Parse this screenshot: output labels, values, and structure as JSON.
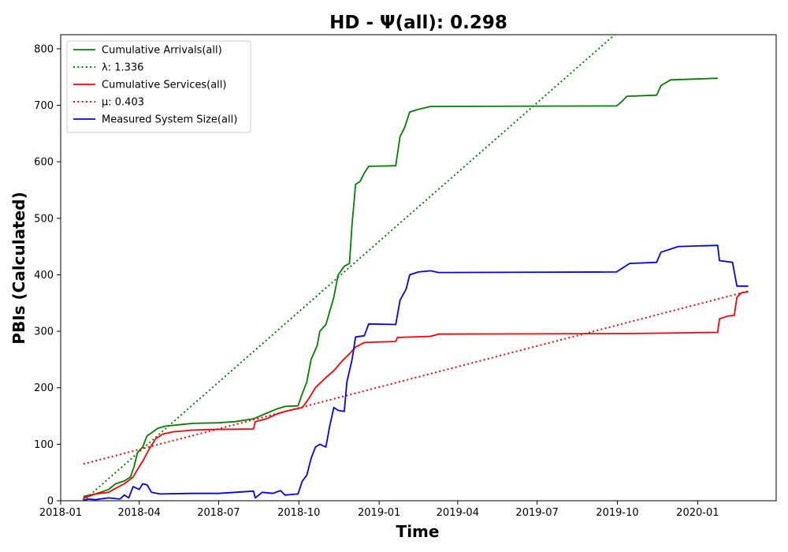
{
  "chart_data": {
    "type": "line",
    "title": "HD -  Ψ(all): 0.298",
    "xlabel": "Time",
    "ylabel": "PBIs (Calculated)",
    "xlim": [
      "2018-01-01",
      "2020-03-31"
    ],
    "ylim": [
      0,
      825
    ],
    "x_ticks": [
      "2018-01",
      "2018-04",
      "2018-07",
      "2018-10",
      "2019-01",
      "2019-04",
      "2019-07",
      "2019-10",
      "2020-01"
    ],
    "y_ticks": [
      0,
      100,
      200,
      300,
      400,
      500,
      600,
      700,
      800
    ],
    "grid": false,
    "legend_position": "upper-left",
    "series": [
      {
        "name": "Cumulative Arrivals(all)",
        "color": "#008000",
        "style": "solid",
        "points": [
          [
            "2018-01-27",
            0
          ],
          [
            "2018-01-28",
            8
          ],
          [
            "2018-02-10",
            12
          ],
          [
            "2018-02-25",
            20
          ],
          [
            "2018-03-05",
            30
          ],
          [
            "2018-03-15",
            35
          ],
          [
            "2018-03-22",
            42
          ],
          [
            "2018-03-26",
            60
          ],
          [
            "2018-03-30",
            85
          ],
          [
            "2018-04-05",
            95
          ],
          [
            "2018-04-10",
            115
          ],
          [
            "2018-04-15",
            120
          ],
          [
            "2018-04-22",
            128
          ],
          [
            "2018-05-01",
            132
          ],
          [
            "2018-05-20",
            135
          ],
          [
            "2018-06-01",
            137
          ],
          [
            "2018-07-01",
            138
          ],
          [
            "2018-07-20",
            140
          ],
          [
            "2018-08-10",
            145
          ],
          [
            "2018-08-25",
            155
          ],
          [
            "2018-09-05",
            162
          ],
          [
            "2018-09-15",
            167
          ],
          [
            "2018-09-30",
            168
          ],
          [
            "2018-10-05",
            190
          ],
          [
            "2018-10-10",
            210
          ],
          [
            "2018-10-15",
            250
          ],
          [
            "2018-10-22",
            275
          ],
          [
            "2018-10-25",
            300
          ],
          [
            "2018-11-01",
            312
          ],
          [
            "2018-11-10",
            360
          ],
          [
            "2018-11-15",
            400
          ],
          [
            "2018-11-22",
            415
          ],
          [
            "2018-11-28",
            420
          ],
          [
            "2018-12-01",
            490
          ],
          [
            "2018-12-05",
            560
          ],
          [
            "2018-12-10",
            565
          ],
          [
            "2018-12-15",
            580
          ],
          [
            "2018-12-20",
            592
          ],
          [
            "2019-01-20",
            593
          ],
          [
            "2019-01-25",
            645
          ],
          [
            "2019-01-30",
            660
          ],
          [
            "2019-02-05",
            688
          ],
          [
            "2019-02-15",
            693
          ],
          [
            "2019-03-01",
            698
          ],
          [
            "2019-09-30",
            699
          ],
          [
            "2019-10-05",
            705
          ],
          [
            "2019-10-12",
            716
          ],
          [
            "2019-11-15",
            718
          ],
          [
            "2019-11-20",
            735
          ],
          [
            "2019-12-01",
            745
          ],
          [
            "2020-01-24",
            748
          ]
        ]
      },
      {
        "name": "λ: 1.336",
        "color": "#008000",
        "style": "dotted",
        "points": [
          [
            "2018-01-27",
            0
          ],
          [
            "2019-09-28",
            825
          ]
        ]
      },
      {
        "name": "Cumulative Services(all)",
        "color": "#ff0000",
        "style": "solid",
        "points": [
          [
            "2018-01-27",
            0
          ],
          [
            "2018-01-28",
            5
          ],
          [
            "2018-02-10",
            12
          ],
          [
            "2018-02-25",
            15
          ],
          [
            "2018-03-05",
            22
          ],
          [
            "2018-03-15",
            30
          ],
          [
            "2018-03-25",
            42
          ],
          [
            "2018-03-30",
            55
          ],
          [
            "2018-04-05",
            70
          ],
          [
            "2018-04-12",
            90
          ],
          [
            "2018-04-20",
            110
          ],
          [
            "2018-04-28",
            118
          ],
          [
            "2018-05-10",
            122
          ],
          [
            "2018-06-01",
            125
          ],
          [
            "2018-06-20",
            126
          ],
          [
            "2018-08-10",
            127
          ],
          [
            "2018-08-12",
            140
          ],
          [
            "2018-08-25",
            145
          ],
          [
            "2018-09-05",
            153
          ],
          [
            "2018-09-15",
            158
          ],
          [
            "2018-10-05",
            165
          ],
          [
            "2018-10-12",
            180
          ],
          [
            "2018-10-20",
            200
          ],
          [
            "2018-11-01",
            218
          ],
          [
            "2018-11-10",
            230
          ],
          [
            "2018-11-20",
            248
          ],
          [
            "2018-11-28",
            260
          ],
          [
            "2018-12-05",
            272
          ],
          [
            "2018-12-15",
            280
          ],
          [
            "2019-01-20",
            282
          ],
          [
            "2019-01-22",
            289
          ],
          [
            "2019-03-01",
            291
          ],
          [
            "2019-03-10",
            295
          ],
          [
            "2019-10-15",
            296
          ],
          [
            "2020-01-24",
            298
          ],
          [
            "2020-01-26",
            322
          ],
          [
            "2020-02-05",
            327
          ],
          [
            "2020-02-12",
            328
          ],
          [
            "2020-02-15",
            360
          ],
          [
            "2020-02-20",
            368
          ],
          [
            "2020-02-28",
            370
          ]
        ]
      },
      {
        "name": "μ: 0.403",
        "color": "#ff0000",
        "style": "dotted",
        "points": [
          [
            "2018-01-27",
            65
          ],
          [
            "2020-02-28",
            371
          ]
        ]
      },
      {
        "name": "Measured System Size(all)",
        "color": "#0000ff",
        "style": "solid",
        "points": [
          [
            "2018-01-27",
            0
          ],
          [
            "2018-02-01",
            3
          ],
          [
            "2018-02-10",
            2
          ],
          [
            "2018-02-25",
            5
          ],
          [
            "2018-03-10",
            3
          ],
          [
            "2018-03-15",
            10
          ],
          [
            "2018-03-20",
            5
          ],
          [
            "2018-03-25",
            25
          ],
          [
            "2018-04-01",
            20
          ],
          [
            "2018-04-05",
            30
          ],
          [
            "2018-04-10",
            28
          ],
          [
            "2018-04-15",
            15
          ],
          [
            "2018-04-25",
            12
          ],
          [
            "2018-06-01",
            13
          ],
          [
            "2018-07-01",
            13
          ],
          [
            "2018-08-10",
            17
          ],
          [
            "2018-08-12",
            5
          ],
          [
            "2018-08-20",
            15
          ],
          [
            "2018-09-01",
            13
          ],
          [
            "2018-09-10",
            18
          ],
          [
            "2018-09-15",
            10
          ],
          [
            "2018-09-30",
            12
          ],
          [
            "2018-10-05",
            35
          ],
          [
            "2018-10-10",
            45
          ],
          [
            "2018-10-15",
            75
          ],
          [
            "2018-10-20",
            95
          ],
          [
            "2018-10-25",
            100
          ],
          [
            "2018-11-01",
            95
          ],
          [
            "2018-11-05",
            130
          ],
          [
            "2018-11-10",
            165
          ],
          [
            "2018-11-15",
            160
          ],
          [
            "2018-11-22",
            158
          ],
          [
            "2018-11-25",
            210
          ],
          [
            "2018-12-01",
            250
          ],
          [
            "2018-12-05",
            290
          ],
          [
            "2018-12-15",
            292
          ],
          [
            "2018-12-20",
            313
          ],
          [
            "2019-01-20",
            312
          ],
          [
            "2019-01-25",
            355
          ],
          [
            "2019-02-01",
            375
          ],
          [
            "2019-02-05",
            400
          ],
          [
            "2019-02-15",
            405
          ],
          [
            "2019-03-01",
            407
          ],
          [
            "2019-03-10",
            404
          ],
          [
            "2019-09-30",
            405
          ],
          [
            "2019-10-05",
            410
          ],
          [
            "2019-10-15",
            420
          ],
          [
            "2019-11-15",
            422
          ],
          [
            "2019-11-20",
            440
          ],
          [
            "2019-12-10",
            450
          ],
          [
            "2020-01-24",
            452
          ],
          [
            "2020-01-26",
            425
          ],
          [
            "2020-02-10",
            422
          ],
          [
            "2020-02-15",
            380
          ],
          [
            "2020-02-28",
            380
          ]
        ]
      }
    ]
  }
}
